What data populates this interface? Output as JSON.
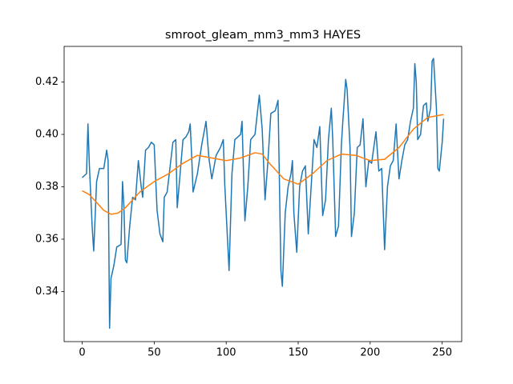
{
  "chart_data": {
    "type": "line",
    "title": "smroot_gleam_mm3_mm3 HAYES",
    "xlim": [
      -12.55,
      263.55
    ],
    "xticks": [
      0,
      50,
      100,
      150,
      200,
      250
    ],
    "ylim": [
      0.3209,
      0.4336
    ],
    "yticks": [
      0.34,
      0.36,
      0.38,
      {
        "value": 0.4,
        "label": "0.40"
      },
      0.42
    ],
    "series": [
      {
        "color": "#1f77b4",
        "x": [
          0,
          3,
          4,
          5,
          7,
          8,
          10,
          12,
          15,
          17,
          18,
          19,
          20,
          22,
          24,
          27,
          28,
          29,
          30,
          31,
          33,
          35,
          37,
          39,
          41,
          42,
          44,
          46,
          48,
          50,
          52,
          54,
          56,
          57,
          59,
          63,
          65,
          66,
          68,
          70,
          72,
          74,
          75,
          76,
          77,
          80,
          83,
          86,
          88,
          90,
          93,
          96,
          98,
          99,
          102,
          104,
          106,
          110,
          111,
          113,
          115,
          117,
          120,
          123,
          125,
          127,
          129,
          131,
          134,
          136,
          138,
          139,
          141,
          143,
          145,
          146,
          147,
          149,
          151,
          153,
          155,
          157,
          159,
          161,
          163,
          165,
          167,
          169,
          171,
          173,
          174,
          176,
          178,
          180,
          181,
          183,
          184,
          186,
          187,
          189,
          191,
          193,
          195,
          197,
          199,
          201,
          204,
          206,
          208,
          210,
          212,
          214,
          216,
          218,
          220,
          222,
          224,
          226,
          228,
          230,
          231,
          232,
          233,
          235,
          237,
          239,
          240,
          242,
          243,
          244,
          246,
          247,
          248,
          250,
          251
        ],
        "values": [
          0.3835,
          0.385,
          0.404,
          0.388,
          0.364,
          0.3555,
          0.382,
          0.387,
          0.387,
          0.394,
          0.39,
          0.326,
          0.345,
          0.35,
          0.357,
          0.358,
          0.382,
          0.372,
          0.352,
          0.351,
          0.365,
          0.376,
          0.375,
          0.39,
          0.38,
          0.376,
          0.394,
          0.395,
          0.397,
          0.396,
          0.371,
          0.362,
          0.359,
          0.376,
          0.378,
          0.397,
          0.398,
          0.372,
          0.385,
          0.398,
          0.399,
          0.401,
          0.404,
          0.392,
          0.378,
          0.385,
          0.396,
          0.405,
          0.391,
          0.383,
          0.392,
          0.395,
          0.398,
          0.381,
          0.348,
          0.385,
          0.398,
          0.4,
          0.405,
          0.367,
          0.38,
          0.398,
          0.4,
          0.415,
          0.402,
          0.375,
          0.39,
          0.408,
          0.409,
          0.413,
          0.348,
          0.342,
          0.37,
          0.38,
          0.385,
          0.39,
          0.37,
          0.355,
          0.38,
          0.386,
          0.388,
          0.362,
          0.38,
          0.398,
          0.395,
          0.403,
          0.369,
          0.375,
          0.398,
          0.41,
          0.398,
          0.361,
          0.365,
          0.396,
          0.405,
          0.421,
          0.417,
          0.395,
          0.361,
          0.37,
          0.395,
          0.396,
          0.406,
          0.38,
          0.39,
          0.389,
          0.401,
          0.386,
          0.387,
          0.356,
          0.38,
          0.388,
          0.39,
          0.404,
          0.383,
          0.39,
          0.396,
          0.398,
          0.405,
          0.41,
          0.427,
          0.42,
          0.398,
          0.4,
          0.411,
          0.412,
          0.405,
          0.41,
          0.428,
          0.429,
          0.41,
          0.387,
          0.386,
          0.397,
          0.406
        ]
      },
      {
        "color": "#ff7f0e",
        "x": [
          0,
          5,
          10,
          15,
          20,
          25,
          30,
          35,
          40,
          50,
          60,
          70,
          80,
          90,
          100,
          110,
          120,
          125,
          130,
          140,
          150,
          160,
          170,
          180,
          190,
          200,
          210,
          220,
          230,
          240,
          250,
          251
        ],
        "values": [
          0.3785,
          0.377,
          0.374,
          0.371,
          0.3695,
          0.37,
          0.372,
          0.375,
          0.378,
          0.382,
          0.385,
          0.389,
          0.392,
          0.391,
          0.39,
          0.391,
          0.393,
          0.3925,
          0.389,
          0.383,
          0.381,
          0.385,
          0.39,
          0.3925,
          0.392,
          0.39,
          0.3905,
          0.395,
          0.402,
          0.4065,
          0.4075,
          0.4075
        ]
      }
    ]
  }
}
